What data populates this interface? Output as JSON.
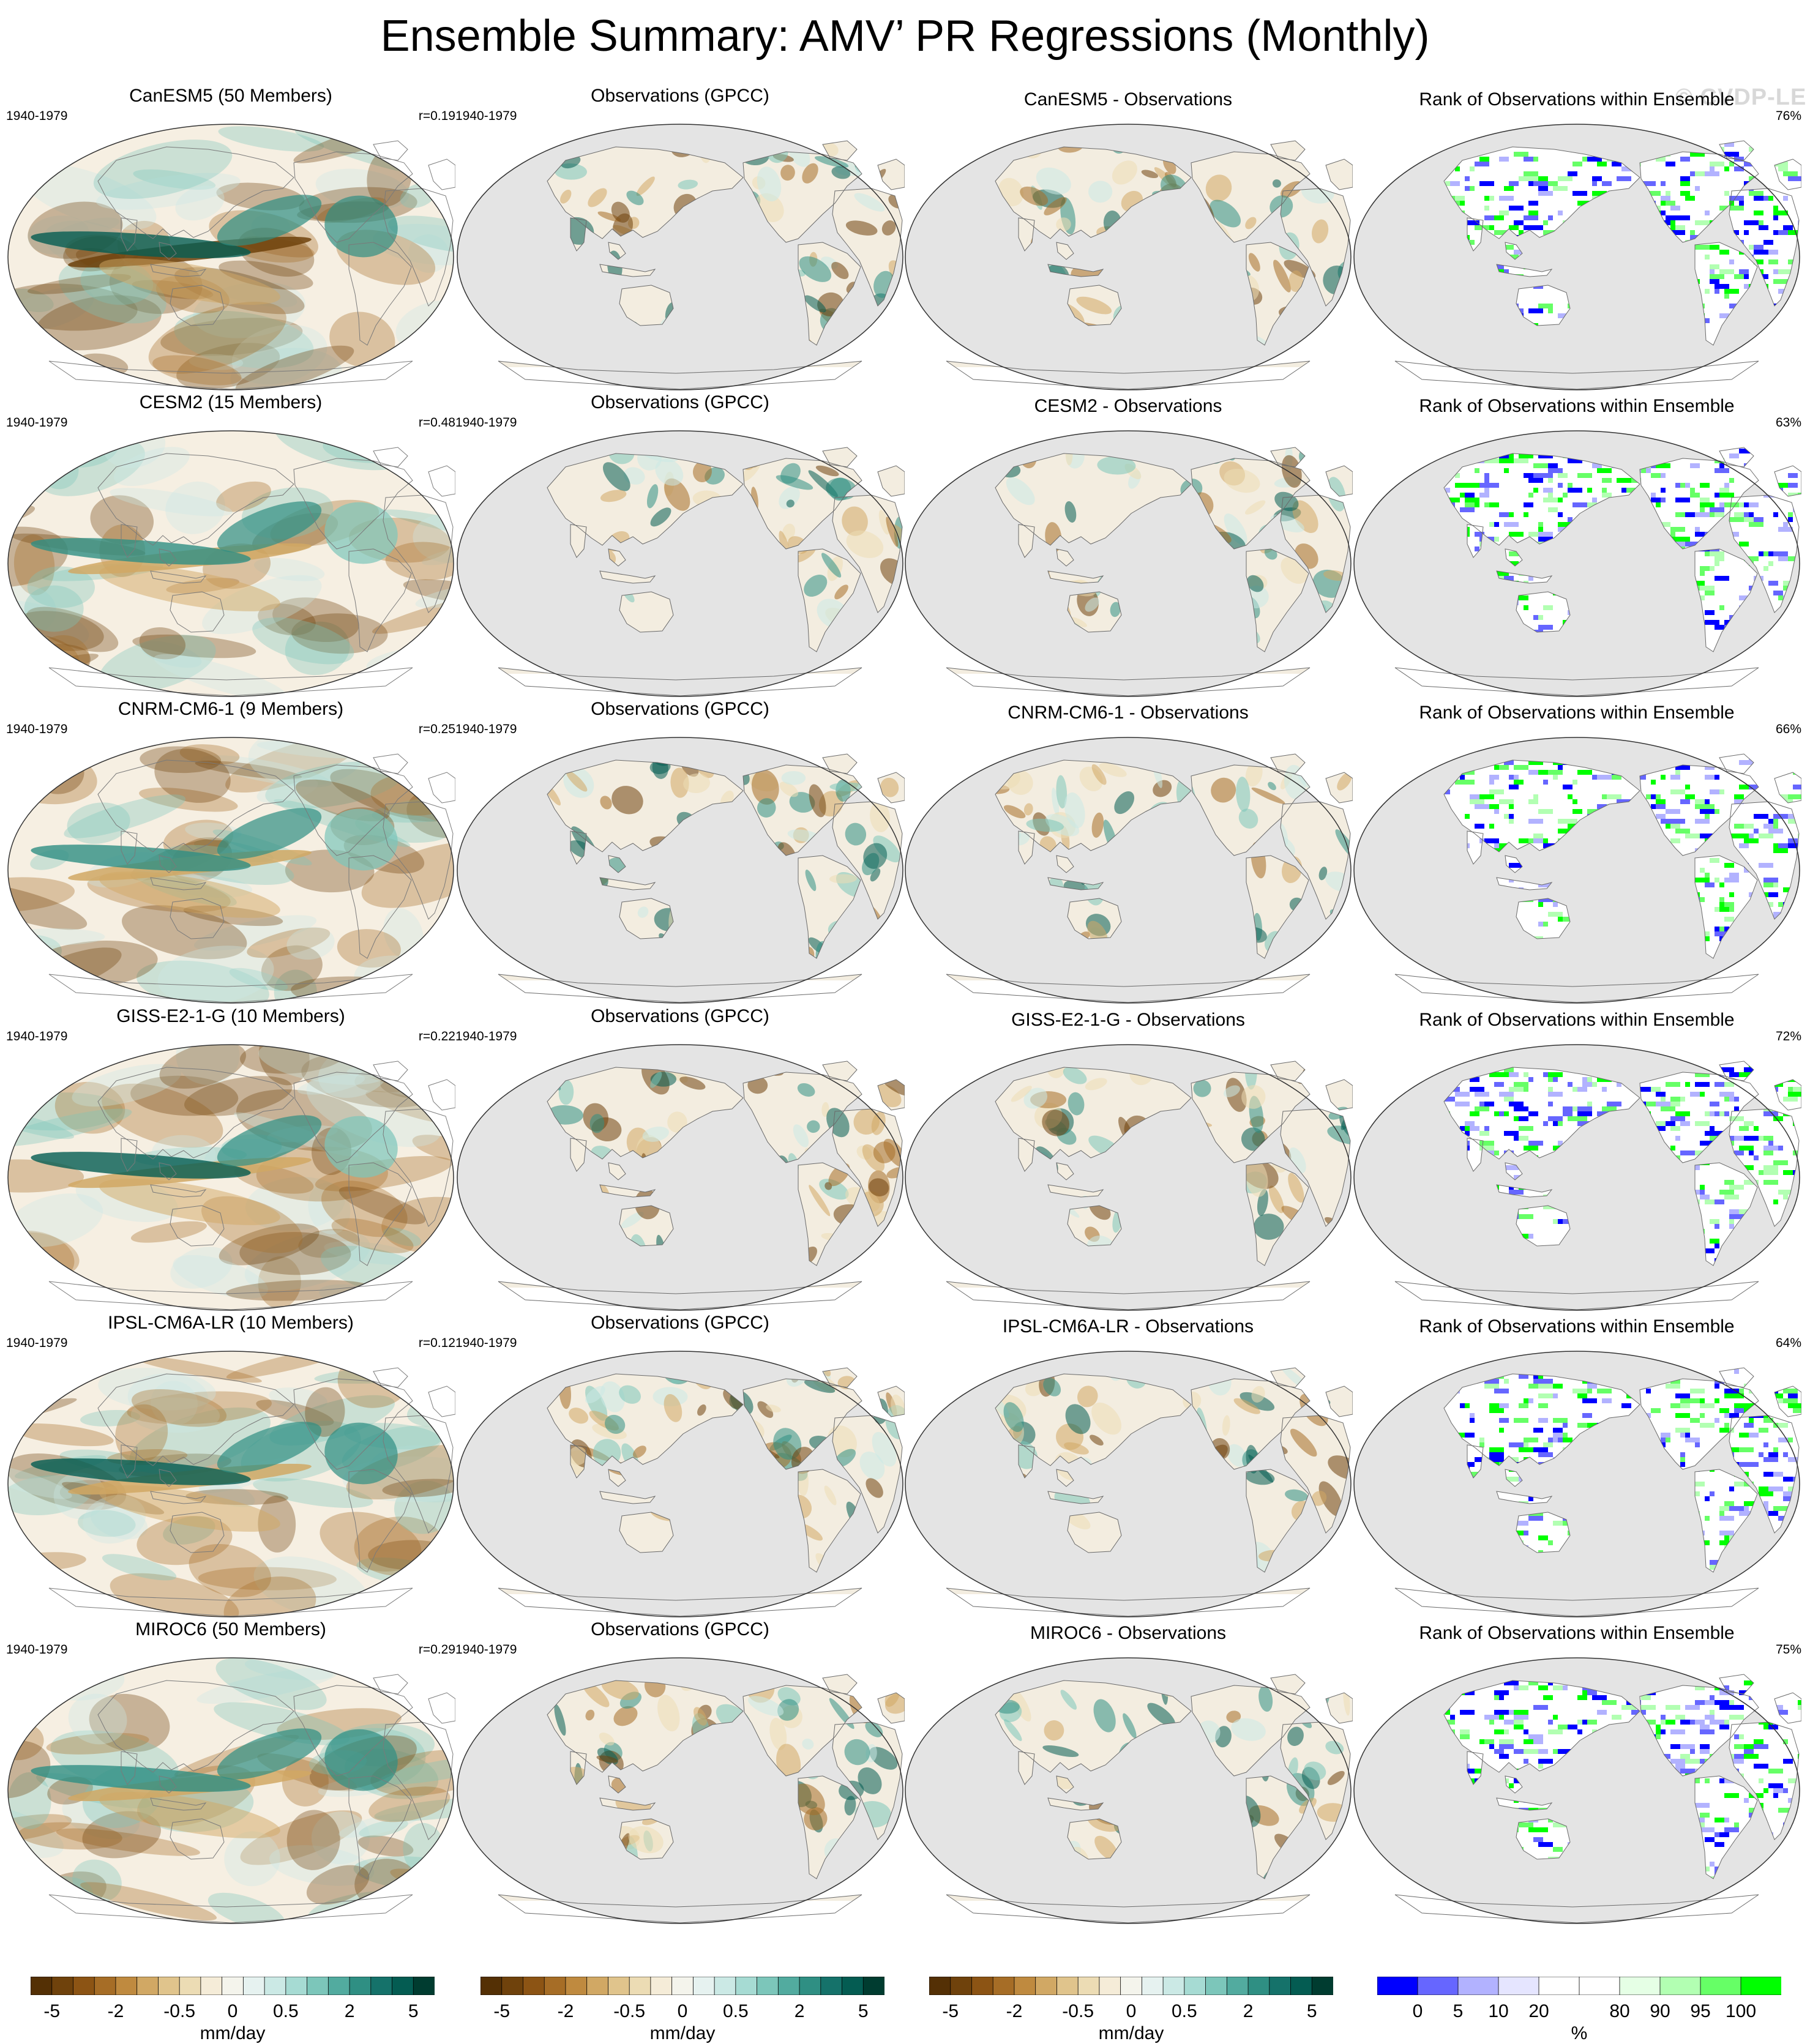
{
  "title": "Ensemble Summary: AMV’ PR Regressions (Monthly)",
  "watermark": "© CVDP-LE",
  "rows": [
    {
      "model_title": "CanESM5 (50 Members)",
      "period": "1940-1979",
      "r": "r=0.19",
      "obs_title": "Observations (GPCC)",
      "obs_period": "1940-1979",
      "diff_title": "CanESM5 - Observations",
      "rank_title": "Rank of Observations within Ensemble",
      "rank_pct": "76%"
    },
    {
      "model_title": "CESM2 (15 Members)",
      "period": "1940-1979",
      "r": "r=0.48",
      "obs_title": "Observations (GPCC)",
      "obs_period": "1940-1979",
      "diff_title": "CESM2 - Observations",
      "rank_title": "Rank of Observations within Ensemble",
      "rank_pct": "63%"
    },
    {
      "model_title": "CNRM-CM6-1 (9 Members)",
      "period": "1940-1979",
      "r": "r=0.25",
      "obs_title": "Observations (GPCC)",
      "obs_period": "1940-1979",
      "diff_title": "CNRM-CM6-1 - Observations",
      "rank_title": "Rank of Observations within Ensemble",
      "rank_pct": "66%"
    },
    {
      "model_title": "GISS-E2-1-G (10 Members)",
      "period": "1940-1979",
      "r": "r=0.22",
      "obs_title": "Observations (GPCC)",
      "obs_period": "1940-1979",
      "diff_title": "GISS-E2-1-G - Observations",
      "rank_title": "Rank of Observations within Ensemble",
      "rank_pct": "72%"
    },
    {
      "model_title": "IPSL-CM6A-LR (10 Members)",
      "period": "1940-1979",
      "r": "r=0.12",
      "obs_title": "Observations (GPCC)",
      "obs_period": "1940-1979",
      "diff_title": "IPSL-CM6A-LR - Observations",
      "rank_title": "Rank of Observations within Ensemble",
      "rank_pct": "64%"
    },
    {
      "model_title": "MIROC6 (50 Members)",
      "period": "1940-1979",
      "r": "r=0.29",
      "obs_title": "Observations (GPCC)",
      "obs_period": "1940-1979",
      "diff_title": "MIROC6 - Observations",
      "rank_title": "Rank of Observations within Ensemble",
      "rank_pct": "75%"
    }
  ],
  "colorbars": {
    "pr": {
      "ticks": [
        "-5",
        "-2",
        "-0.5",
        "0",
        "0.5",
        "2",
        "5"
      ],
      "units": "mm/day",
      "colors": [
        "#543005",
        "#6f420c",
        "#8c5414",
        "#a66d26",
        "#bf8a3f",
        "#d1a864",
        "#e0c48c",
        "#ecdcb4",
        "#f5ecd8",
        "#f4f4ec",
        "#e6f2f0",
        "#cbe9e5",
        "#a6dbd3",
        "#7cc6ba",
        "#52ab9f",
        "#2f8f83",
        "#15726a",
        "#045c52",
        "#003c30"
      ]
    },
    "rank": {
      "ticks": [
        "0",
        "5",
        "10",
        "20",
        "80",
        "90",
        "95",
        "100"
      ],
      "units": "%",
      "colors": [
        "#0000ff",
        "#6666ff",
        "#b2b2ff",
        "#e5e5ff",
        "#ffffff",
        "#ffffff",
        "#e5ffe5",
        "#b2ffb2",
        "#66ff66",
        "#00ff00"
      ]
    }
  },
  "colors": {
    "ocean_gray": "#e4e4e4",
    "brown": "#a66d26",
    "teal": "#15726a",
    "rank_low": "#0000ff",
    "rank_high": "#00ff00"
  }
}
